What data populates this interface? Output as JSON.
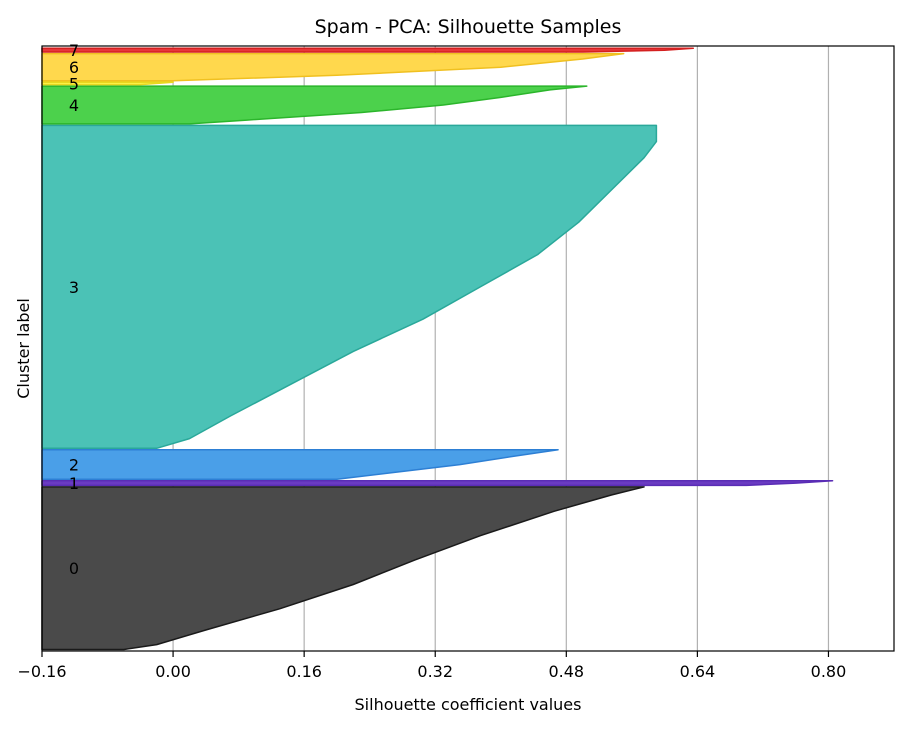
{
  "chart_data": {
    "type": "area",
    "title": "Spam - PCA: Silhouette Samples",
    "xlabel": "Silhouette coefficient values",
    "ylabel": "Cluster label",
    "xlim": [
      -0.16,
      0.88
    ],
    "xticks": [
      "−0.16",
      "0.00",
      "0.16",
      "0.32",
      "0.48",
      "0.64",
      "0.80"
    ],
    "xtick_values": [
      -0.16,
      0.0,
      0.16,
      0.32,
      0.48,
      0.64,
      0.8
    ],
    "grid": "vertical",
    "y_units": "sample index (stacked by cluster)",
    "ylim": [
      0,
      4000
    ],
    "clusters": [
      {
        "label": "0",
        "color": "#4a4a4a",
        "edge": "#1a1a1a",
        "y_start": 10,
        "y_end": 1085,
        "profile": [
          [
            0.0,
            0.575
          ],
          [
            0.05,
            0.535
          ],
          [
            0.15,
            0.465
          ],
          [
            0.3,
            0.375
          ],
          [
            0.45,
            0.295
          ],
          [
            0.6,
            0.22
          ],
          [
            0.75,
            0.13
          ],
          [
            0.88,
            0.04
          ],
          [
            0.97,
            -0.02
          ],
          [
            1.0,
            -0.06
          ]
        ]
      },
      {
        "label": "1",
        "color": "#6a3bc2",
        "edge": "#5a2db5",
        "y_start": 1095,
        "y_end": 1125,
        "profile": [
          [
            0.0,
            0.805
          ],
          [
            0.5,
            0.76
          ],
          [
            1.0,
            0.7
          ]
        ]
      },
      {
        "label": "2",
        "color": "#4a9fe8",
        "edge": "#2d7fd4",
        "y_start": 1135,
        "y_end": 1330,
        "profile": [
          [
            0.0,
            0.47
          ],
          [
            0.2,
            0.42
          ],
          [
            0.5,
            0.35
          ],
          [
            0.8,
            0.26
          ],
          [
            1.0,
            0.2
          ]
        ]
      },
      {
        "label": "3",
        "color": "#4bc2b6",
        "edge": "#2aa89a",
        "y_start": 1340,
        "y_end": 3475,
        "profile": [
          [
            0.0,
            0.59
          ],
          [
            0.05,
            0.59
          ],
          [
            0.1,
            0.575
          ],
          [
            0.2,
            0.535
          ],
          [
            0.3,
            0.495
          ],
          [
            0.4,
            0.445
          ],
          [
            0.5,
            0.375
          ],
          [
            0.6,
            0.305
          ],
          [
            0.7,
            0.22
          ],
          [
            0.8,
            0.145
          ],
          [
            0.9,
            0.07
          ],
          [
            0.97,
            0.02
          ],
          [
            1.0,
            -0.02
          ]
        ]
      },
      {
        "label": "4",
        "color": "#4cd14c",
        "edge": "#2bb52b",
        "y_start": 3485,
        "y_end": 3735,
        "profile": [
          [
            0.0,
            0.505
          ],
          [
            0.1,
            0.46
          ],
          [
            0.3,
            0.4
          ],
          [
            0.5,
            0.33
          ],
          [
            0.7,
            0.23
          ],
          [
            0.9,
            0.09
          ],
          [
            1.0,
            0.02
          ]
        ]
      },
      {
        "label": "5",
        "color": "#fff34d",
        "edge": "#e8d820",
        "y_start": 3745,
        "y_end": 3760,
        "profile": [
          [
            0.0,
            0.0
          ],
          [
            1.0,
            -0.04
          ]
        ]
      },
      {
        "label": "6",
        "color": "#ffd84d",
        "edge": "#f0c020",
        "y_start": 3770,
        "y_end": 3950,
        "profile": [
          [
            0.0,
            0.55
          ],
          [
            0.2,
            0.5
          ],
          [
            0.5,
            0.4
          ],
          [
            0.8,
            0.2
          ],
          [
            1.0,
            0.0
          ]
        ]
      },
      {
        "label": "7",
        "color": "#e8373a",
        "edge": "#d42020",
        "y_start": 3960,
        "y_end": 3985,
        "profile": [
          [
            0.0,
            0.635
          ],
          [
            0.5,
            0.6
          ],
          [
            1.0,
            0.5
          ]
        ]
      }
    ]
  }
}
